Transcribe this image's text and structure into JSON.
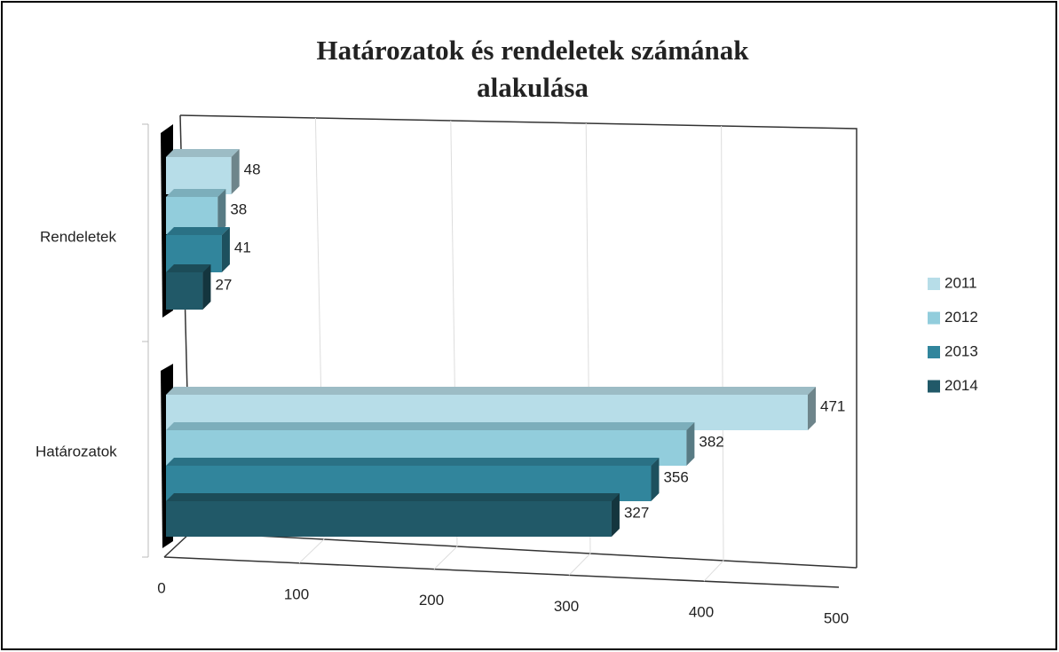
{
  "chart_data": {
    "type": "bar3d_horizontal",
    "title": "Határozatok és rendeletek számának alakulása",
    "categories": [
      "Rendeletek",
      "Határozatok"
    ],
    "series": [
      {
        "name": "2011",
        "color": "#b7dde8",
        "values": [
          48,
          471
        ]
      },
      {
        "name": "2012",
        "color": "#92cddc",
        "values": [
          38,
          382
        ]
      },
      {
        "name": "2013",
        "color": "#31859c",
        "values": [
          41,
          356
        ]
      },
      {
        "name": "2014",
        "color": "#215968",
        "values": [
          27,
          327
        ]
      }
    ],
    "xlim": [
      0,
      500
    ],
    "xticks": [
      0,
      100,
      200,
      300,
      400,
      500
    ],
    "grid": true,
    "legend": "right"
  }
}
